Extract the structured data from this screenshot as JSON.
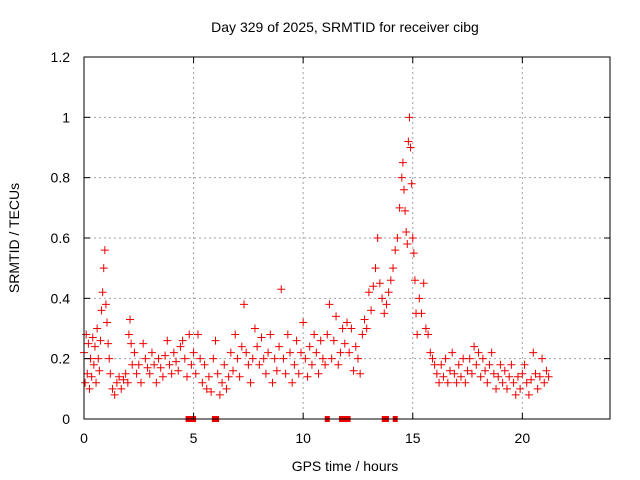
{
  "chart_data": {
    "type": "scatter",
    "title": "Day 329 of 2025, SRMTID for receiver cibg",
    "xlabel": "GPS time / hours",
    "ylabel": "SRMTID / TECUs",
    "xlim": [
      0,
      24
    ],
    "ylim": [
      0,
      1.2
    ],
    "xticks": [
      0,
      5,
      10,
      15,
      20
    ],
    "xtick_labels": [
      "0",
      "5",
      "10",
      "15",
      "20"
    ],
    "yticks": [
      0,
      0.2,
      0.4,
      0.6,
      0.8,
      1.0,
      1.2
    ],
    "ytick_labels": [
      "0",
      "0.2",
      "0.4",
      "0.6",
      "0.8",
      "1",
      "1.2"
    ],
    "grid": true,
    "marker": "+",
    "color": "#ee0000",
    "zero_markers_x": [
      4.75,
      4.85,
      5.0,
      5.95,
      6.05,
      11.1,
      11.75,
      11.85,
      11.95,
      12.05,
      13.7,
      13.8,
      14.2
    ],
    "series": [
      {
        "name": "SRMTID",
        "points": [
          [
            0.0,
            0.22
          ],
          [
            0.05,
            0.12
          ],
          [
            0.1,
            0.28
          ],
          [
            0.15,
            0.15
          ],
          [
            0.2,
            0.25
          ],
          [
            0.25,
            0.1
          ],
          [
            0.3,
            0.2
          ],
          [
            0.35,
            0.14
          ],
          [
            0.4,
            0.27
          ],
          [
            0.45,
            0.18
          ],
          [
            0.5,
            0.24
          ],
          [
            0.55,
            0.12
          ],
          [
            0.6,
            0.3
          ],
          [
            0.65,
            0.2
          ],
          [
            0.7,
            0.16
          ],
          [
            0.75,
            0.26
          ],
          [
            0.8,
            0.36
          ],
          [
            0.85,
            0.42
          ],
          [
            0.9,
            0.5
          ],
          [
            0.95,
            0.56
          ],
          [
            1.0,
            0.38
          ],
          [
            1.05,
            0.32
          ],
          [
            1.1,
            0.25
          ],
          [
            1.15,
            0.2
          ],
          [
            1.2,
            0.15
          ],
          [
            1.3,
            0.1
          ],
          [
            1.4,
            0.08
          ],
          [
            1.5,
            0.12
          ],
          [
            1.6,
            0.14
          ],
          [
            1.7,
            0.1
          ],
          [
            1.8,
            0.13
          ],
          [
            1.9,
            0.15
          ],
          [
            2.0,
            0.12
          ],
          [
            2.05,
            0.28
          ],
          [
            2.1,
            0.33
          ],
          [
            2.15,
            0.25
          ],
          [
            2.2,
            0.18
          ],
          [
            2.3,
            0.22
          ],
          [
            2.4,
            0.15
          ],
          [
            2.5,
            0.18
          ],
          [
            2.6,
            0.12
          ],
          [
            2.7,
            0.25
          ],
          [
            2.8,
            0.2
          ],
          [
            2.9,
            0.17
          ],
          [
            3.0,
            0.15
          ],
          [
            3.1,
            0.22
          ],
          [
            3.2,
            0.18
          ],
          [
            3.3,
            0.12
          ],
          [
            3.4,
            0.2
          ],
          [
            3.5,
            0.17
          ],
          [
            3.6,
            0.14
          ],
          [
            3.7,
            0.21
          ],
          [
            3.8,
            0.26
          ],
          [
            3.9,
            0.18
          ],
          [
            4.0,
            0.15
          ],
          [
            4.1,
            0.22
          ],
          [
            4.2,
            0.19
          ],
          [
            4.3,
            0.16
          ],
          [
            4.4,
            0.24
          ],
          [
            4.5,
            0.26
          ],
          [
            4.6,
            0.2
          ],
          [
            4.7,
            0.14
          ],
          [
            4.8,
            0.28
          ],
          [
            4.9,
            0.18
          ],
          [
            5.0,
            0.22
          ],
          [
            5.1,
            0.15
          ],
          [
            5.2,
            0.28
          ],
          [
            5.3,
            0.2
          ],
          [
            5.4,
            0.12
          ],
          [
            5.5,
            0.18
          ],
          [
            5.6,
            0.1
          ],
          [
            5.7,
            0.14
          ],
          [
            5.8,
            0.09
          ],
          [
            5.9,
            0.2
          ],
          [
            6.0,
            0.26
          ],
          [
            6.1,
            0.15
          ],
          [
            6.2,
            0.08
          ],
          [
            6.3,
            0.12
          ],
          [
            6.4,
            0.18
          ],
          [
            6.5,
            0.1
          ],
          [
            6.6,
            0.14
          ],
          [
            6.7,
            0.22
          ],
          [
            6.8,
            0.16
          ],
          [
            6.9,
            0.28
          ],
          [
            7.0,
            0.2
          ],
          [
            7.1,
            0.14
          ],
          [
            7.2,
            0.24
          ],
          [
            7.3,
            0.38
          ],
          [
            7.4,
            0.22
          ],
          [
            7.5,
            0.18
          ],
          [
            7.6,
            0.12
          ],
          [
            7.7,
            0.2
          ],
          [
            7.8,
            0.3
          ],
          [
            7.9,
            0.24
          ],
          [
            8.0,
            0.18
          ],
          [
            8.1,
            0.27
          ],
          [
            8.2,
            0.2
          ],
          [
            8.3,
            0.15
          ],
          [
            8.4,
            0.22
          ],
          [
            8.5,
            0.28
          ],
          [
            8.6,
            0.12
          ],
          [
            8.7,
            0.2
          ],
          [
            8.8,
            0.16
          ],
          [
            8.9,
            0.24
          ],
          [
            9.0,
            0.43
          ],
          [
            9.1,
            0.2
          ],
          [
            9.2,
            0.15
          ],
          [
            9.3,
            0.28
          ],
          [
            9.4,
            0.22
          ],
          [
            9.5,
            0.12
          ],
          [
            9.6,
            0.18
          ],
          [
            9.7,
            0.26
          ],
          [
            9.8,
            0.15
          ],
          [
            9.9,
            0.22
          ],
          [
            10.0,
            0.32
          ],
          [
            10.1,
            0.2
          ],
          [
            10.2,
            0.14
          ],
          [
            10.3,
            0.24
          ],
          [
            10.4,
            0.18
          ],
          [
            10.5,
            0.28
          ],
          [
            10.6,
            0.22
          ],
          [
            10.7,
            0.15
          ],
          [
            10.8,
            0.26
          ],
          [
            10.9,
            0.2
          ],
          [
            11.0,
            0.18
          ],
          [
            11.1,
            0.28
          ],
          [
            11.2,
            0.38
          ],
          [
            11.3,
            0.2
          ],
          [
            11.4,
            0.26
          ],
          [
            11.5,
            0.34
          ],
          [
            11.6,
            0.18
          ],
          [
            11.7,
            0.22
          ],
          [
            11.8,
            0.3
          ],
          [
            11.9,
            0.25
          ],
          [
            12.0,
            0.32
          ],
          [
            12.1,
            0.22
          ],
          [
            12.2,
            0.3
          ],
          [
            12.3,
            0.16
          ],
          [
            12.4,
            0.24
          ],
          [
            12.5,
            0.2
          ],
          [
            12.6,
            0.15
          ],
          [
            12.7,
            0.28
          ],
          [
            12.8,
            0.33
          ],
          [
            12.9,
            0.3
          ],
          [
            13.0,
            0.42
          ],
          [
            13.1,
            0.36
          ],
          [
            13.2,
            0.44
          ],
          [
            13.3,
            0.5
          ],
          [
            13.4,
            0.6
          ],
          [
            13.5,
            0.45
          ],
          [
            13.6,
            0.4
          ],
          [
            13.7,
            0.35
          ],
          [
            13.8,
            0.38
          ],
          [
            13.9,
            0.42
          ],
          [
            14.0,
            0.46
          ],
          [
            14.1,
            0.5
          ],
          [
            14.2,
            0.56
          ],
          [
            14.3,
            0.6
          ],
          [
            14.4,
            0.7
          ],
          [
            14.5,
            0.8
          ],
          [
            14.55,
            0.85
          ],
          [
            14.6,
            0.76
          ],
          [
            14.65,
            0.69
          ],
          [
            14.7,
            0.62
          ],
          [
            14.75,
            0.58
          ],
          [
            14.8,
            0.92
          ],
          [
            14.85,
            1.0
          ],
          [
            14.9,
            0.9
          ],
          [
            14.95,
            0.78
          ],
          [
            15.0,
            0.6
          ],
          [
            15.05,
            0.55
          ],
          [
            15.1,
            0.46
          ],
          [
            15.15,
            0.35
          ],
          [
            15.2,
            0.28
          ],
          [
            15.3,
            0.4
          ],
          [
            15.4,
            0.35
          ],
          [
            15.5,
            0.45
          ],
          [
            15.6,
            0.3
          ],
          [
            15.7,
            0.28
          ],
          [
            15.8,
            0.22
          ],
          [
            15.9,
            0.2
          ],
          [
            16.0,
            0.18
          ],
          [
            16.1,
            0.15
          ],
          [
            16.2,
            0.12
          ],
          [
            16.3,
            0.18
          ],
          [
            16.4,
            0.14
          ],
          [
            16.5,
            0.2
          ],
          [
            16.6,
            0.12
          ],
          [
            16.7,
            0.16
          ],
          [
            16.8,
            0.22
          ],
          [
            16.9,
            0.15
          ],
          [
            17.0,
            0.12
          ],
          [
            17.1,
            0.18
          ],
          [
            17.2,
            0.14
          ],
          [
            17.3,
            0.2
          ],
          [
            17.4,
            0.12
          ],
          [
            17.5,
            0.16
          ],
          [
            17.6,
            0.2
          ],
          [
            17.7,
            0.15
          ],
          [
            17.8,
            0.24
          ],
          [
            17.9,
            0.18
          ],
          [
            18.0,
            0.22
          ],
          [
            18.1,
            0.14
          ],
          [
            18.2,
            0.2
          ],
          [
            18.3,
            0.16
          ],
          [
            18.4,
            0.12
          ],
          [
            18.5,
            0.18
          ],
          [
            18.6,
            0.22
          ],
          [
            18.7,
            0.15
          ],
          [
            18.8,
            0.1
          ],
          [
            18.9,
            0.14
          ],
          [
            19.0,
            0.18
          ],
          [
            19.1,
            0.12
          ],
          [
            19.2,
            0.16
          ],
          [
            19.3,
            0.1
          ],
          [
            19.4,
            0.14
          ],
          [
            19.5,
            0.18
          ],
          [
            19.6,
            0.12
          ],
          [
            19.7,
            0.08
          ],
          [
            19.8,
            0.14
          ],
          [
            19.9,
            0.1
          ],
          [
            20.0,
            0.15
          ],
          [
            20.1,
            0.18
          ],
          [
            20.2,
            0.12
          ],
          [
            20.3,
            0.08
          ],
          [
            20.4,
            0.13
          ],
          [
            20.5,
            0.22
          ],
          [
            20.6,
            0.15
          ],
          [
            20.7,
            0.1
          ],
          [
            20.8,
            0.14
          ],
          [
            20.9,
            0.2
          ],
          [
            21.0,
            0.12
          ],
          [
            21.1,
            0.16
          ],
          [
            21.2,
            0.14
          ]
        ]
      }
    ]
  }
}
